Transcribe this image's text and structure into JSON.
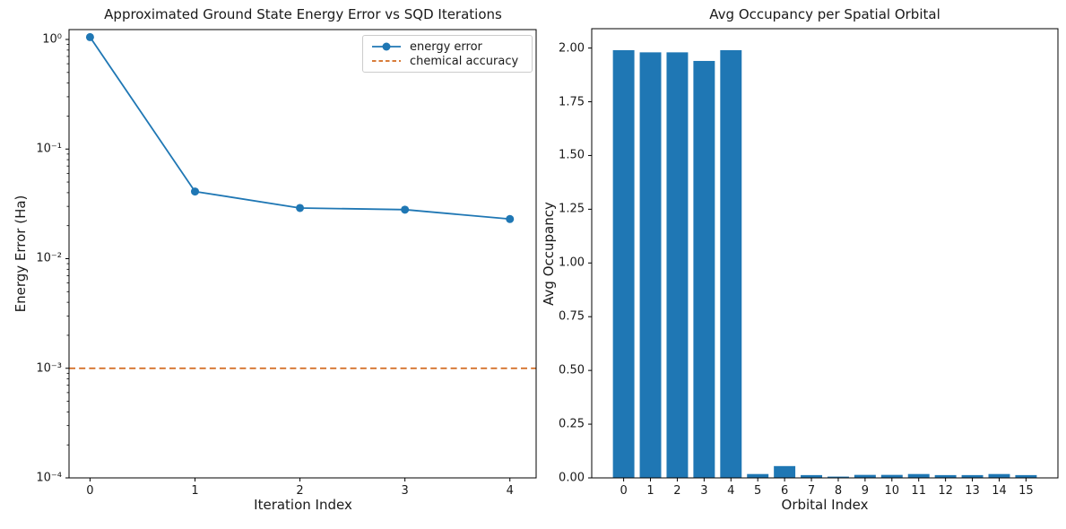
{
  "figure": {
    "background": "#ffffff",
    "text_color": "#1a1a1a"
  },
  "chart_data": [
    {
      "type": "line",
      "title": "Approximated Ground State Energy Error vs SQD Iterations",
      "xlabel": "Iteration Index",
      "ylabel": "Energy Error (Ha)",
      "yscale": "log",
      "x": [
        0,
        1,
        2,
        3,
        4
      ],
      "series": [
        {
          "name": "energy error",
          "values": [
            1.05,
            0.041,
            0.029,
            0.028,
            0.023
          ],
          "color": "#1f77b4",
          "marker": "circle",
          "style": "solid"
        }
      ],
      "hline": {
        "name": "chemical accuracy",
        "value": 0.001,
        "color": "#d2691e",
        "style": "dashed"
      },
      "xlim": [
        -0.2,
        4.25
      ],
      "ylim": [
        0.0001,
        1.23
      ],
      "xticks": {
        "values": [
          0,
          1,
          2,
          3,
          4
        ],
        "labels": [
          "0",
          "1",
          "2",
          "3",
          "4"
        ]
      },
      "yticks": {
        "values": [
          1,
          0.1,
          0.01,
          0.001,
          0.0001
        ],
        "labels": [
          "10⁰",
          "10⁻¹",
          "10⁻²",
          "10⁻³",
          "10⁻⁴"
        ]
      },
      "legend": {
        "position": "upper right",
        "entries": [
          "energy error",
          "chemical accuracy"
        ]
      },
      "grid": false
    },
    {
      "type": "bar",
      "title": "Avg Occupancy per Spatial Orbital",
      "xlabel": "Orbital Index",
      "ylabel": "Avg Occupancy",
      "categories": [
        "0",
        "1",
        "2",
        "3",
        "4",
        "5",
        "6",
        "7",
        "8",
        "9",
        "10",
        "11",
        "12",
        "13",
        "14",
        "15"
      ],
      "values": [
        1.99,
        1.98,
        1.98,
        1.94,
        1.99,
        0.018,
        0.055,
        0.013,
        0.006,
        0.014,
        0.014,
        0.018,
        0.013,
        0.013,
        0.018,
        0.013
      ],
      "bar_color": "#1f77b4",
      "bar_width": 0.8,
      "xlim": [
        -1.19,
        16.19
      ],
      "ylim": [
        0,
        2.09
      ],
      "yticks": {
        "values": [
          0,
          0.25,
          0.5,
          0.75,
          1.0,
          1.25,
          1.5,
          1.75,
          2.0
        ],
        "labels": [
          "0.00",
          "0.25",
          "0.50",
          "0.75",
          "1.00",
          "1.25",
          "1.50",
          "1.75",
          "2.00"
        ]
      },
      "grid": false
    }
  ]
}
